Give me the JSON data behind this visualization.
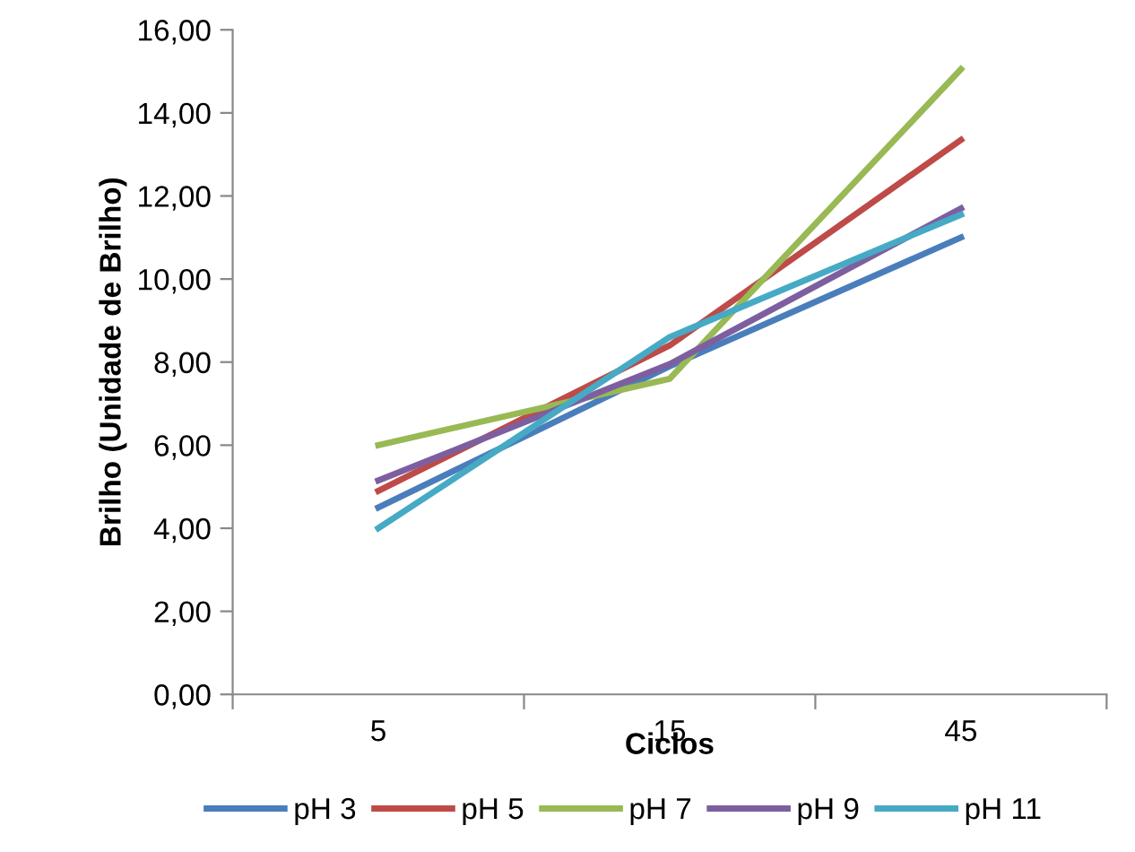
{
  "chart_data": {
    "type": "line",
    "xlabel": "Ciclos",
    "ylabel": "Brilho (Unidade de Brilho)",
    "categories": [
      "5",
      "15",
      "45"
    ],
    "series": [
      {
        "name": "pH 3",
        "color": "#4a7ebb",
        "values": [
          4.5,
          7.9,
          11.0
        ]
      },
      {
        "name": "pH 5",
        "color": "#be4b48",
        "values": [
          4.9,
          8.4,
          13.35
        ]
      },
      {
        "name": "pH 7",
        "color": "#98b954",
        "values": [
          6.0,
          7.6,
          15.05
        ]
      },
      {
        "name": "pH 9",
        "color": "#7d5fa0",
        "values": [
          5.15,
          7.95,
          11.7
        ]
      },
      {
        "name": "pH 11",
        "color": "#46aac5",
        "values": [
          4.0,
          8.6,
          11.55
        ]
      }
    ],
    "ylim": [
      0,
      16
    ],
    "yticks": [
      {
        "value": 0,
        "label": "0,00"
      },
      {
        "value": 2,
        "label": "2,00"
      },
      {
        "value": 4,
        "label": "4,00"
      },
      {
        "value": 6,
        "label": "6,00"
      },
      {
        "value": 8,
        "label": "8,00"
      },
      {
        "value": 10,
        "label": "10,00"
      },
      {
        "value": 12,
        "label": "12,00"
      },
      {
        "value": 14,
        "label": "14,00"
      },
      {
        "value": 16,
        "label": "16,00"
      }
    ],
    "grid": false,
    "legend": "bottom",
    "marker": "none",
    "line_style": "solid"
  }
}
